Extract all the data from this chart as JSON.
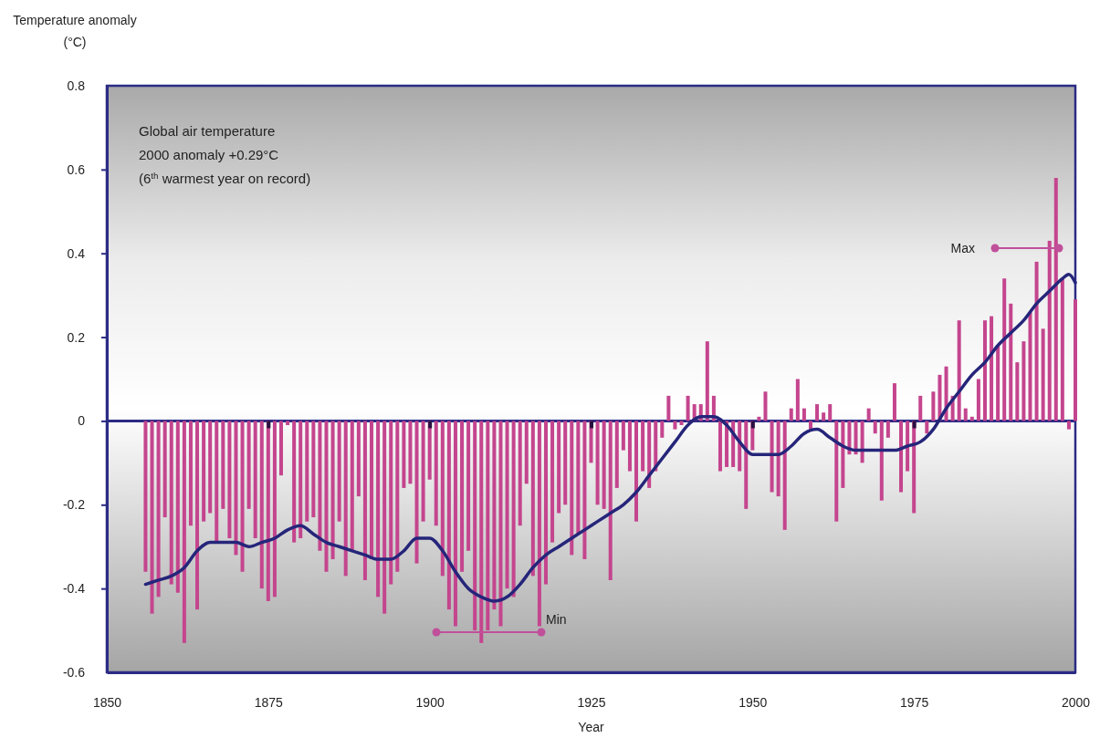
{
  "chart_data": {
    "type": "bar",
    "title": "Global air temperature",
    "subtitle": "2000 anomaly +0.29°C",
    "xlabel": "Year",
    "ylabel": "Temperature anomaly (°C)",
    "annotations": [
      "(6$^{th}$ warmest year on record)",
      "Min",
      "Max"
    ],
    "ref_lines": [
      {
        "axis": "y",
        "value": 0,
        "color": "#2b2b85"
      }
    ],
    "xlim": [
      1850,
      2000
    ],
    "xticks": [
      1850,
      1875,
      1900,
      1925,
      1950,
      1975,
      2000
    ],
    "ylim": [
      -0.6,
      0.8
    ],
    "yticks": [
      -0.6,
      -0.4,
      -0.2,
      0,
      0.2,
      0.4,
      0.6,
      0.8
    ],
    "grid": false,
    "series": [
      {
        "color": "#c4458e",
        "x": [
          1856,
          1857,
          1858,
          1859,
          1860,
          1861,
          1862,
          1863,
          1864,
          1865,
          1866,
          1867,
          1868,
          1869,
          1870,
          1871,
          1872,
          1873,
          1874,
          1875,
          1876,
          1877,
          1878,
          1879,
          1880,
          1881,
          1882,
          1883,
          1884,
          1885,
          1886,
          1887,
          1888,
          1889,
          1890,
          1891,
          1892,
          1893,
          1894,
          1895,
          1896,
          1897,
          1898,
          1899,
          1900,
          1901,
          1902,
          1903,
          1904,
          1905,
          1906,
          1907,
          1908,
          1909,
          1910,
          1911,
          1912,
          1913,
          1914,
          1915,
          1916,
          1917,
          1918,
          1919,
          1920,
          1921,
          1922,
          1923,
          1924,
          1925,
          1926,
          1927,
          1928,
          1929,
          1930,
          1931,
          1932,
          1933,
          1934,
          1935,
          1936,
          1937,
          1938,
          1939,
          1940,
          1941,
          1942,
          1943,
          1944,
          1945,
          1946,
          1947,
          1948,
          1949,
          1950,
          1951,
          1952,
          1953,
          1954,
          1955,
          1956,
          1957,
          1958,
          1959,
          1960,
          1961,
          1962,
          1963,
          1964,
          1965,
          1966,
          1967,
          1968,
          1969,
          1970,
          1971,
          1972,
          1973,
          1974,
          1975,
          1976,
          1977,
          1978,
          1979,
          1980,
          1981,
          1982,
          1983,
          1984,
          1985,
          1986,
          1987,
          1988,
          1989,
          1990,
          1991,
          1992,
          1993,
          1994,
          1995,
          1996,
          1997,
          1998,
          1999,
          2000
        ],
        "values": [
          -0.36,
          -0.46,
          -0.42,
          -0.23,
          -0.39,
          -0.41,
          -0.53,
          -0.25,
          -0.45,
          -0.24,
          -0.22,
          -0.29,
          -0.21,
          -0.28,
          -0.32,
          -0.36,
          -0.21,
          -0.28,
          -0.4,
          -0.43,
          -0.42,
          -0.13,
          -0.01,
          -0.29,
          -0.28,
          -0.24,
          -0.23,
          -0.31,
          -0.36,
          -0.33,
          -0.24,
          -0.37,
          -0.31,
          -0.18,
          -0.38,
          -0.33,
          -0.42,
          -0.46,
          -0.39,
          -0.36,
          -0.16,
          -0.15,
          -0.34,
          -0.24,
          -0.14,
          -0.25,
          -0.37,
          -0.45,
          -0.49,
          -0.36,
          -0.31,
          -0.5,
          -0.53,
          -0.5,
          -0.45,
          -0.49,
          -0.4,
          -0.42,
          -0.25,
          -0.15,
          -0.37,
          -0.49,
          -0.39,
          -0.29,
          -0.22,
          -0.2,
          -0.32,
          -0.27,
          -0.33,
          -0.1,
          -0.2,
          -0.21,
          -0.38,
          -0.16,
          -0.07,
          -0.12,
          -0.24,
          -0.12,
          -0.16,
          -0.12,
          -0.04,
          0.06,
          -0.02,
          -0.01,
          0.06,
          0.04,
          0.04,
          0.19,
          0.06,
          -0.12,
          -0.11,
          -0.11,
          -0.12,
          -0.21,
          -0.07,
          0.01,
          0.07,
          -0.17,
          -0.18,
          -0.26,
          0.03,
          0.1,
          0.03,
          -0.02,
          0.04,
          0.02,
          0.04,
          -0.24,
          -0.16,
          -0.08,
          -0.08,
          -0.1,
          0.03,
          -0.03,
          -0.19,
          -0.04,
          0.09,
          -0.17,
          -0.12,
          -0.22,
          0.06,
          -0.03,
          0.07,
          0.11,
          0.13,
          0.06,
          0.24,
          0.03,
          0.01,
          0.1,
          0.24,
          0.25,
          0.18,
          0.34,
          0.28,
          0.14,
          0.19,
          0.26,
          0.38,
          0.22,
          0.43,
          0.58,
          0.34,
          -0.02,
          0.29
        ]
      },
      {
        "type": "line",
        "color": "#25257a",
        "x": [
          1856,
          1858,
          1860,
          1862,
          1864,
          1866,
          1868,
          1870,
          1872,
          1874,
          1876,
          1878,
          1880,
          1882,
          1884,
          1886,
          1888,
          1890,
          1892,
          1894,
          1896,
          1898,
          1900,
          1902,
          1904,
          1906,
          1908,
          1910,
          1912,
          1914,
          1916,
          1918,
          1920,
          1922,
          1924,
          1926,
          1928,
          1930,
          1932,
          1934,
          1936,
          1938,
          1940,
          1942,
          1944,
          1946,
          1948,
          1950,
          1952,
          1954,
          1956,
          1958,
          1960,
          1962,
          1964,
          1966,
          1968,
          1970,
          1972,
          1974,
          1976,
          1978,
          1980,
          1982,
          1984,
          1986,
          1988,
          1990,
          1992,
          1994,
          1996,
          1998,
          1999,
          2000
        ],
        "values": [
          -0.39,
          -0.38,
          -0.37,
          -0.35,
          -0.31,
          -0.29,
          -0.29,
          -0.29,
          -0.3,
          -0.29,
          -0.28,
          -0.26,
          -0.25,
          -0.27,
          -0.29,
          -0.3,
          -0.31,
          -0.32,
          -0.33,
          -0.33,
          -0.31,
          -0.28,
          -0.28,
          -0.31,
          -0.36,
          -0.4,
          -0.42,
          -0.43,
          -0.42,
          -0.39,
          -0.35,
          -0.32,
          -0.3,
          -0.28,
          -0.26,
          -0.24,
          -0.22,
          -0.2,
          -0.17,
          -0.13,
          -0.09,
          -0.05,
          -0.01,
          0.01,
          0.01,
          -0.01,
          -0.05,
          -0.08,
          -0.08,
          -0.08,
          -0.06,
          -0.03,
          -0.02,
          -0.04,
          -0.06,
          -0.07,
          -0.07,
          -0.07,
          -0.07,
          -0.06,
          -0.05,
          -0.02,
          0.03,
          0.07,
          0.11,
          0.14,
          0.18,
          0.21,
          0.24,
          0.28,
          0.31,
          0.34,
          0.35,
          0.33
        ]
      }
    ]
  }
}
